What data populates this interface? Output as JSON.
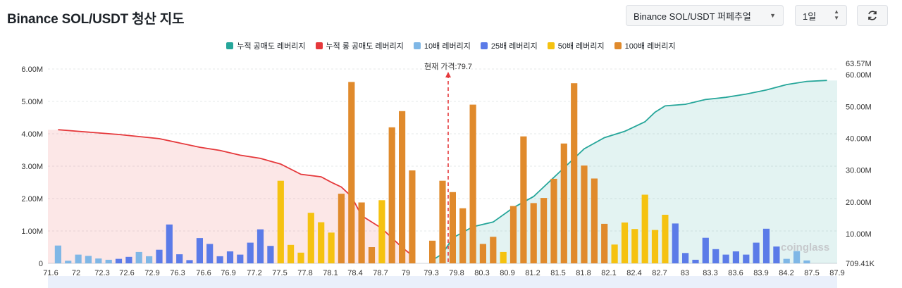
{
  "header": {
    "title": "Binance SOL/USDT 청산 지도",
    "pair_select": "Binance SOL/USDT 퍼페추얼",
    "range_select": "1일"
  },
  "colors": {
    "short_cum": "#26a69a",
    "long_cum": "#e5383b",
    "lev10": "#7fb7e6",
    "lev25": "#5b7be8",
    "lev50": "#f5c211",
    "lev100": "#e08a2c",
    "price_line": "#e5383b"
  },
  "legend": [
    {
      "label": "누적 공매도 레버리지",
      "color": "#26a69a"
    },
    {
      "label": "누적 롱 공매도 레버리지",
      "color": "#e5383b"
    },
    {
      "label": "10배 레버리지",
      "color": "#7fb7e6"
    },
    {
      "label": "25배 레버리지",
      "color": "#5b7be8"
    },
    {
      "label": "50배 레버리지",
      "color": "#f5c211"
    },
    {
      "label": "100배 레버리지",
      "color": "#e08a2c"
    }
  ],
  "watermark": "coinglass",
  "chart_data": {
    "type": "bar",
    "title": "Binance SOL/USDT 청산 지도",
    "current_price_label": "현재 가격:79.7",
    "current_price_index": 21.5,
    "left_axis": {
      "min": 0,
      "max": 6000000,
      "ticks": [
        "0",
        "1.00M",
        "2.00M",
        "3.00M",
        "4.00M",
        "5.00M",
        "6.00M"
      ],
      "tick_values": [
        0,
        1000000,
        2000000,
        3000000,
        4000000,
        5000000,
        6000000
      ]
    },
    "right_axis": {
      "min": 709410,
      "max": 63570000,
      "ticks": [
        "709.41K",
        "10.00M",
        "20.00M",
        "30.00M",
        "40.00M",
        "50.00M",
        "60.00M",
        "63.57M"
      ],
      "tick_values": [
        709410,
        10000000,
        20000000,
        30000000,
        40000000,
        50000000,
        60000000,
        63570000
      ]
    },
    "x_tick_labels": [
      "71.6",
      "72",
      "72.3",
      "72.6",
      "72.9",
      "76.3",
      "76.6",
      "76.9",
      "77.2",
      "77.5",
      "77.8",
      "78.1",
      "78.4",
      "78.7",
      "79",
      "79.3",
      "79.8",
      "80.3",
      "80.9",
      "81.2",
      "81.5",
      "81.8",
      "82.1",
      "82.4",
      "82.7",
      "83",
      "83.3",
      "83.6",
      "83.9",
      "84.2",
      "87.5",
      "87.9"
    ],
    "bars": [
      {
        "index": 0,
        "lev": 10,
        "value": 550000
      },
      {
        "index": 0.5,
        "lev": 10,
        "value": 80000
      },
      {
        "index": 1,
        "lev": 10,
        "value": 270000
      },
      {
        "index": 1.5,
        "lev": 10,
        "value": 230000
      },
      {
        "index": 2,
        "lev": 10,
        "value": 150000
      },
      {
        "index": 2.5,
        "lev": 10,
        "value": 110000
      },
      {
        "index": 3,
        "lev": 25,
        "value": 140000
      },
      {
        "index": 3.5,
        "lev": 25,
        "value": 200000
      },
      {
        "index": 4,
        "lev": 10,
        "value": 350000
      },
      {
        "index": 4.5,
        "lev": 10,
        "value": 220000
      },
      {
        "index": 5,
        "lev": 25,
        "value": 420000
      },
      {
        "index": 5.5,
        "lev": 25,
        "value": 1200000
      },
      {
        "index": 6,
        "lev": 25,
        "value": 280000
      },
      {
        "index": 6.5,
        "lev": 25,
        "value": 100000
      },
      {
        "index": 7,
        "lev": 25,
        "value": 780000
      },
      {
        "index": 7.5,
        "lev": 25,
        "value": 600000
      },
      {
        "index": 8,
        "lev": 25,
        "value": 220000
      },
      {
        "index": 8.5,
        "lev": 25,
        "value": 370000
      },
      {
        "index": 9,
        "lev": 25,
        "value": 270000
      },
      {
        "index": 9.5,
        "lev": 25,
        "value": 640000
      },
      {
        "index": 10,
        "lev": 25,
        "value": 1050000
      },
      {
        "index": 10.5,
        "lev": 25,
        "value": 540000
      },
      {
        "index": 11,
        "lev": 50,
        "value": 2550000
      },
      {
        "index": 11.5,
        "lev": 50,
        "value": 570000
      },
      {
        "index": 12,
        "lev": 50,
        "value": 330000
      },
      {
        "index": 12.5,
        "lev": 50,
        "value": 1560000
      },
      {
        "index": 13,
        "lev": 50,
        "value": 1270000
      },
      {
        "index": 13.5,
        "lev": 50,
        "value": 950000
      },
      {
        "index": 14,
        "lev": 100,
        "value": 2150000
      },
      {
        "index": 14.5,
        "lev": 100,
        "value": 5600000
      },
      {
        "index": 15,
        "lev": 100,
        "value": 1880000
      },
      {
        "index": 15.5,
        "lev": 100,
        "value": 500000
      },
      {
        "index": 16,
        "lev": 50,
        "value": 1950000
      },
      {
        "index": 16.5,
        "lev": 100,
        "value": 4200000
      },
      {
        "index": 17,
        "lev": 100,
        "value": 4700000
      },
      {
        "index": 17.5,
        "lev": 100,
        "value": 2870000
      },
      {
        "index": 18.5,
        "lev": 100,
        "value": 700000
      },
      {
        "index": 19,
        "lev": 100,
        "value": 2550000
      },
      {
        "index": 19.5,
        "lev": 100,
        "value": 2200000
      },
      {
        "index": 20,
        "lev": 100,
        "value": 1700000
      },
      {
        "index": 20.5,
        "lev": 100,
        "value": 4900000
      },
      {
        "index": 21,
        "lev": 100,
        "value": 600000
      },
      {
        "index": 21.5,
        "lev": 100,
        "value": 820000
      },
      {
        "index": 22,
        "lev": 50,
        "value": 350000
      },
      {
        "index": 22.5,
        "lev": 100,
        "value": 1770000
      },
      {
        "index": 23,
        "lev": 100,
        "value": 3920000
      },
      {
        "index": 23.5,
        "lev": 100,
        "value": 1860000
      },
      {
        "index": 24,
        "lev": 100,
        "value": 2020000
      },
      {
        "index": 24.5,
        "lev": 100,
        "value": 2610000
      },
      {
        "index": 25,
        "lev": 100,
        "value": 3700000
      },
      {
        "index": 25.5,
        "lev": 100,
        "value": 5560000
      },
      {
        "index": 26,
        "lev": 100,
        "value": 3020000
      },
      {
        "index": 26.5,
        "lev": 100,
        "value": 2620000
      },
      {
        "index": 27,
        "lev": 100,
        "value": 1220000
      },
      {
        "index": 27.5,
        "lev": 50,
        "value": 580000
      },
      {
        "index": 28,
        "lev": 50,
        "value": 1260000
      },
      {
        "index": 28.5,
        "lev": 50,
        "value": 1060000
      },
      {
        "index": 29,
        "lev": 50,
        "value": 2120000
      },
      {
        "index": 29.5,
        "lev": 50,
        "value": 1030000
      },
      {
        "index": 30,
        "lev": 50,
        "value": 1500000
      },
      {
        "index": 30.5,
        "lev": 25,
        "value": 1230000
      },
      {
        "index": 31,
        "lev": 25,
        "value": 320000
      },
      {
        "index": 31.5,
        "lev": 25,
        "value": 110000
      },
      {
        "index": 32,
        "lev": 25,
        "value": 790000
      },
      {
        "index": 32.5,
        "lev": 25,
        "value": 440000
      },
      {
        "index": 33,
        "lev": 25,
        "value": 270000
      },
      {
        "index": 33.5,
        "lev": 25,
        "value": 370000
      },
      {
        "index": 34,
        "lev": 25,
        "value": 270000
      },
      {
        "index": 34.5,
        "lev": 25,
        "value": 640000
      },
      {
        "index": 35,
        "lev": 25,
        "value": 1070000
      },
      {
        "index": 35.5,
        "lev": 25,
        "value": 520000
      },
      {
        "index": 36,
        "lev": 10,
        "value": 140000
      },
      {
        "index": 36.5,
        "lev": 10,
        "value": 380000
      },
      {
        "index": 37,
        "lev": 10,
        "value": 90000
      }
    ],
    "long_cumulative": {
      "name": "누적 롱 공매도 레버리지",
      "points": [
        [
          0,
          4.2
        ],
        [
          1,
          4.15
        ],
        [
          3,
          4.05
        ],
        [
          5,
          3.92
        ],
        [
          7,
          3.65
        ],
        [
          8,
          3.55
        ],
        [
          9,
          3.4
        ],
        [
          10,
          3.3
        ],
        [
          11,
          3.12
        ],
        [
          12,
          2.8
        ],
        [
          13,
          2.72
        ],
        [
          13.5,
          2.55
        ],
        [
          14,
          2.4
        ],
        [
          14.5,
          2.1
        ],
        [
          15,
          1.5
        ],
        [
          16,
          1.1
        ],
        [
          17,
          0.5
        ],
        [
          17.6,
          0.2
        ]
      ]
    },
    "short_cumulative": {
      "name": "누적 공매도 레버리지",
      "points": [
        [
          18.5,
          0.1
        ],
        [
          19,
          0.3
        ],
        [
          19.5,
          0.8
        ],
        [
          20.5,
          1.15
        ],
        [
          21.5,
          1.3
        ],
        [
          22.5,
          1.75
        ],
        [
          23.5,
          2.1
        ],
        [
          24.5,
          2.7
        ],
        [
          25.5,
          3.3
        ],
        [
          26,
          3.6
        ],
        [
          27,
          3.95
        ],
        [
          28,
          4.15
        ],
        [
          29,
          4.45
        ],
        [
          29.5,
          4.75
        ],
        [
          30,
          4.95
        ],
        [
          31,
          5.0
        ],
        [
          32,
          5.15
        ],
        [
          33,
          5.22
        ],
        [
          34,
          5.32
        ],
        [
          35,
          5.45
        ],
        [
          36,
          5.62
        ],
        [
          37,
          5.72
        ],
        [
          38,
          5.75
        ]
      ]
    }
  }
}
